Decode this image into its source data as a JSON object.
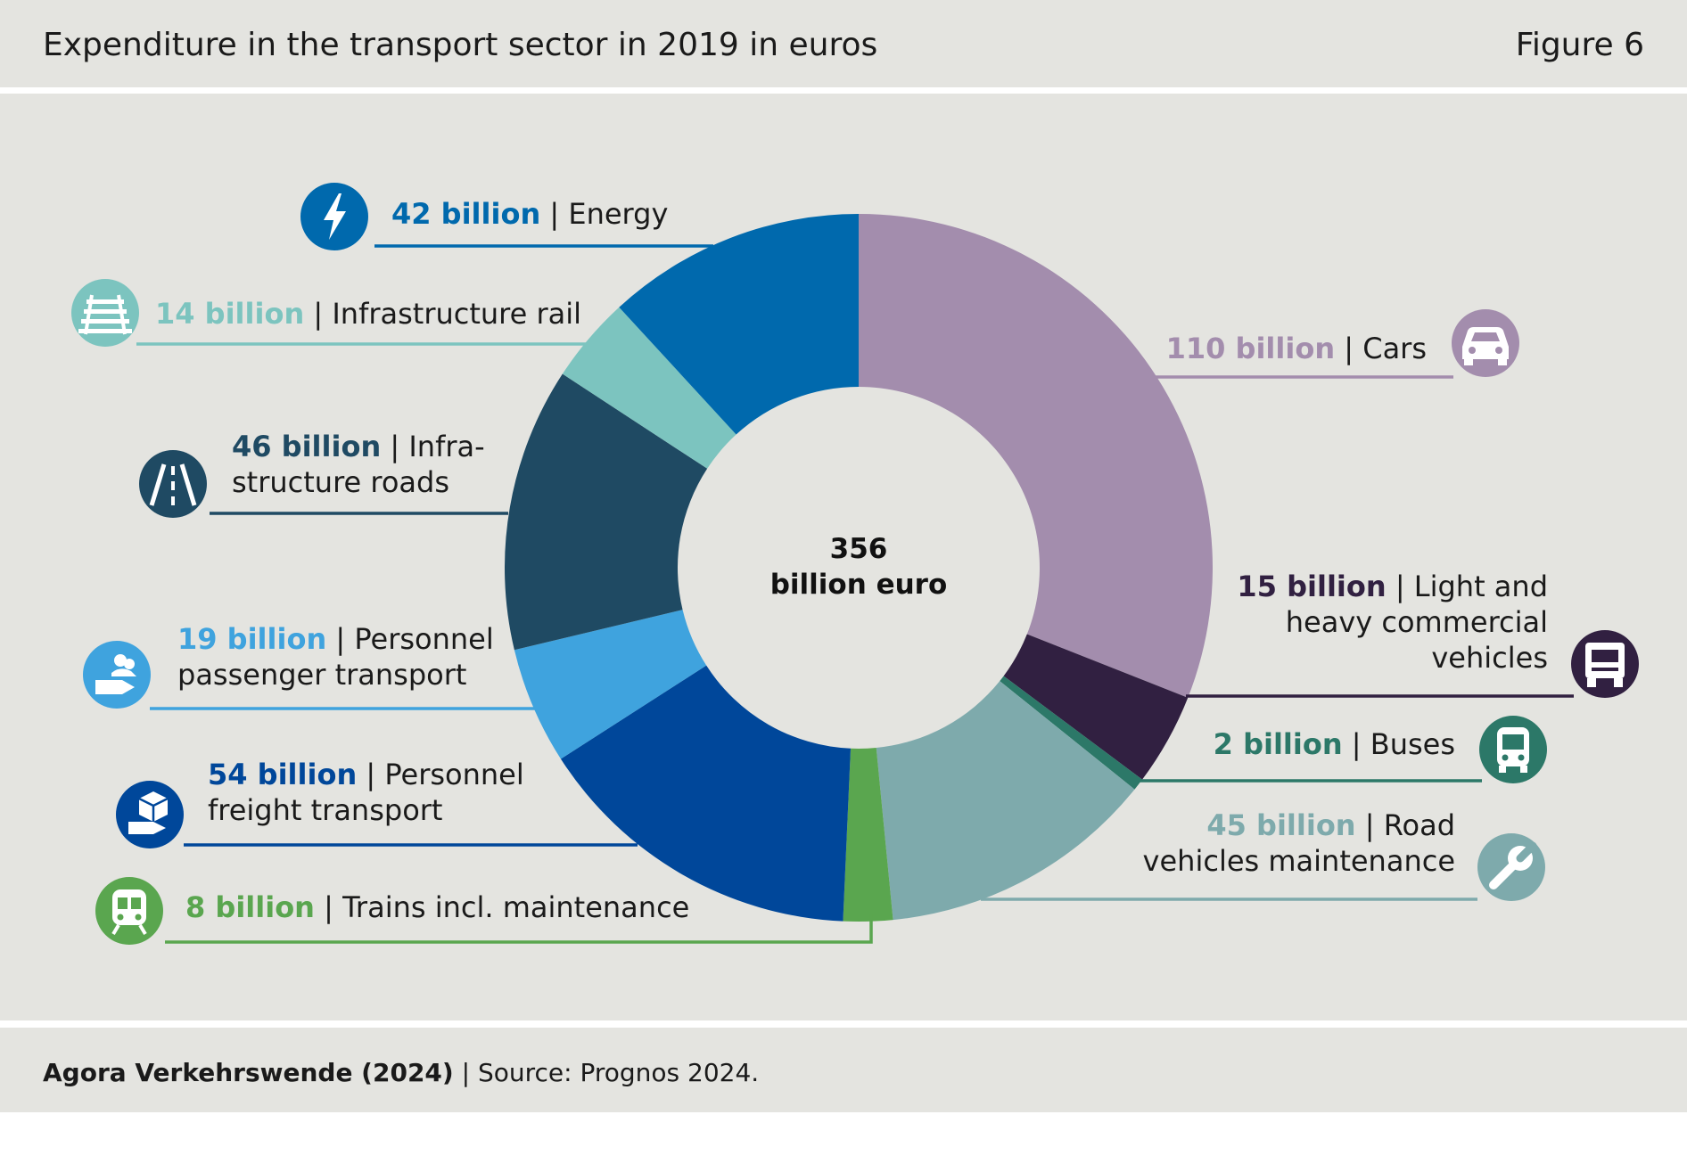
{
  "header": {
    "title": "Expenditure in the transport sector in 2019 in euros",
    "figure": "Figure 6"
  },
  "footer": {
    "source_bold": "Agora Verkehrswende (2024)",
    "source_rest": " | Source: Prognos 2024."
  },
  "chart_data": {
    "type": "pie",
    "donut": true,
    "total_label": [
      "356",
      "billion euro"
    ],
    "unit": "billion euro",
    "slices": [
      {
        "value_label": "110 billion",
        "lines": [
          "Cars"
        ],
        "value": 110,
        "color": "#a38dad",
        "icon": "car-icon"
      },
      {
        "value_label": "15 billion",
        "lines": [
          "Light and",
          "heavy commercial",
          "vehicles"
        ],
        "value": 15,
        "color": "#312041",
        "icon": "truck-icon"
      },
      {
        "value_label": "2 billion",
        "lines": [
          "Buses"
        ],
        "value": 2,
        "color": "#2c7868",
        "icon": "bus-icon"
      },
      {
        "value_label": "45 billion",
        "lines": [
          "Road",
          "vehicles maintenance"
        ],
        "value": 45,
        "color": "#7eaaac",
        "icon": "wrench-icon"
      },
      {
        "value_label": "8 billion",
        "lines": [
          "Trains incl. maintenance"
        ],
        "value": 8,
        "color": "#5aa64f",
        "icon": "train-icon"
      },
      {
        "value_label": "54 billion",
        "lines": [
          "Personnel",
          "freight transport"
        ],
        "value": 54,
        "color": "#00479a",
        "icon": "freight-personnel-icon"
      },
      {
        "value_label": "19 billion",
        "lines": [
          "Personnel",
          "passenger transport"
        ],
        "value": 19,
        "color": "#3fa3de",
        "icon": "passenger-personnel-icon"
      },
      {
        "value_label": "46 billion",
        "lines": [
          "Infra-",
          "structure roads"
        ],
        "value": 46,
        "color": "#1f4a63",
        "icon": "road-icon"
      },
      {
        "value_label": "14 billion",
        "lines": [
          "Infrastructure rail"
        ],
        "value": 14,
        "color": "#7cc4bf",
        "icon": "rail-track-icon"
      },
      {
        "value_label": "42 billion",
        "lines": [
          "Energy"
        ],
        "value": 42,
        "color": "#0069ad",
        "icon": "lightning-icon"
      }
    ]
  }
}
